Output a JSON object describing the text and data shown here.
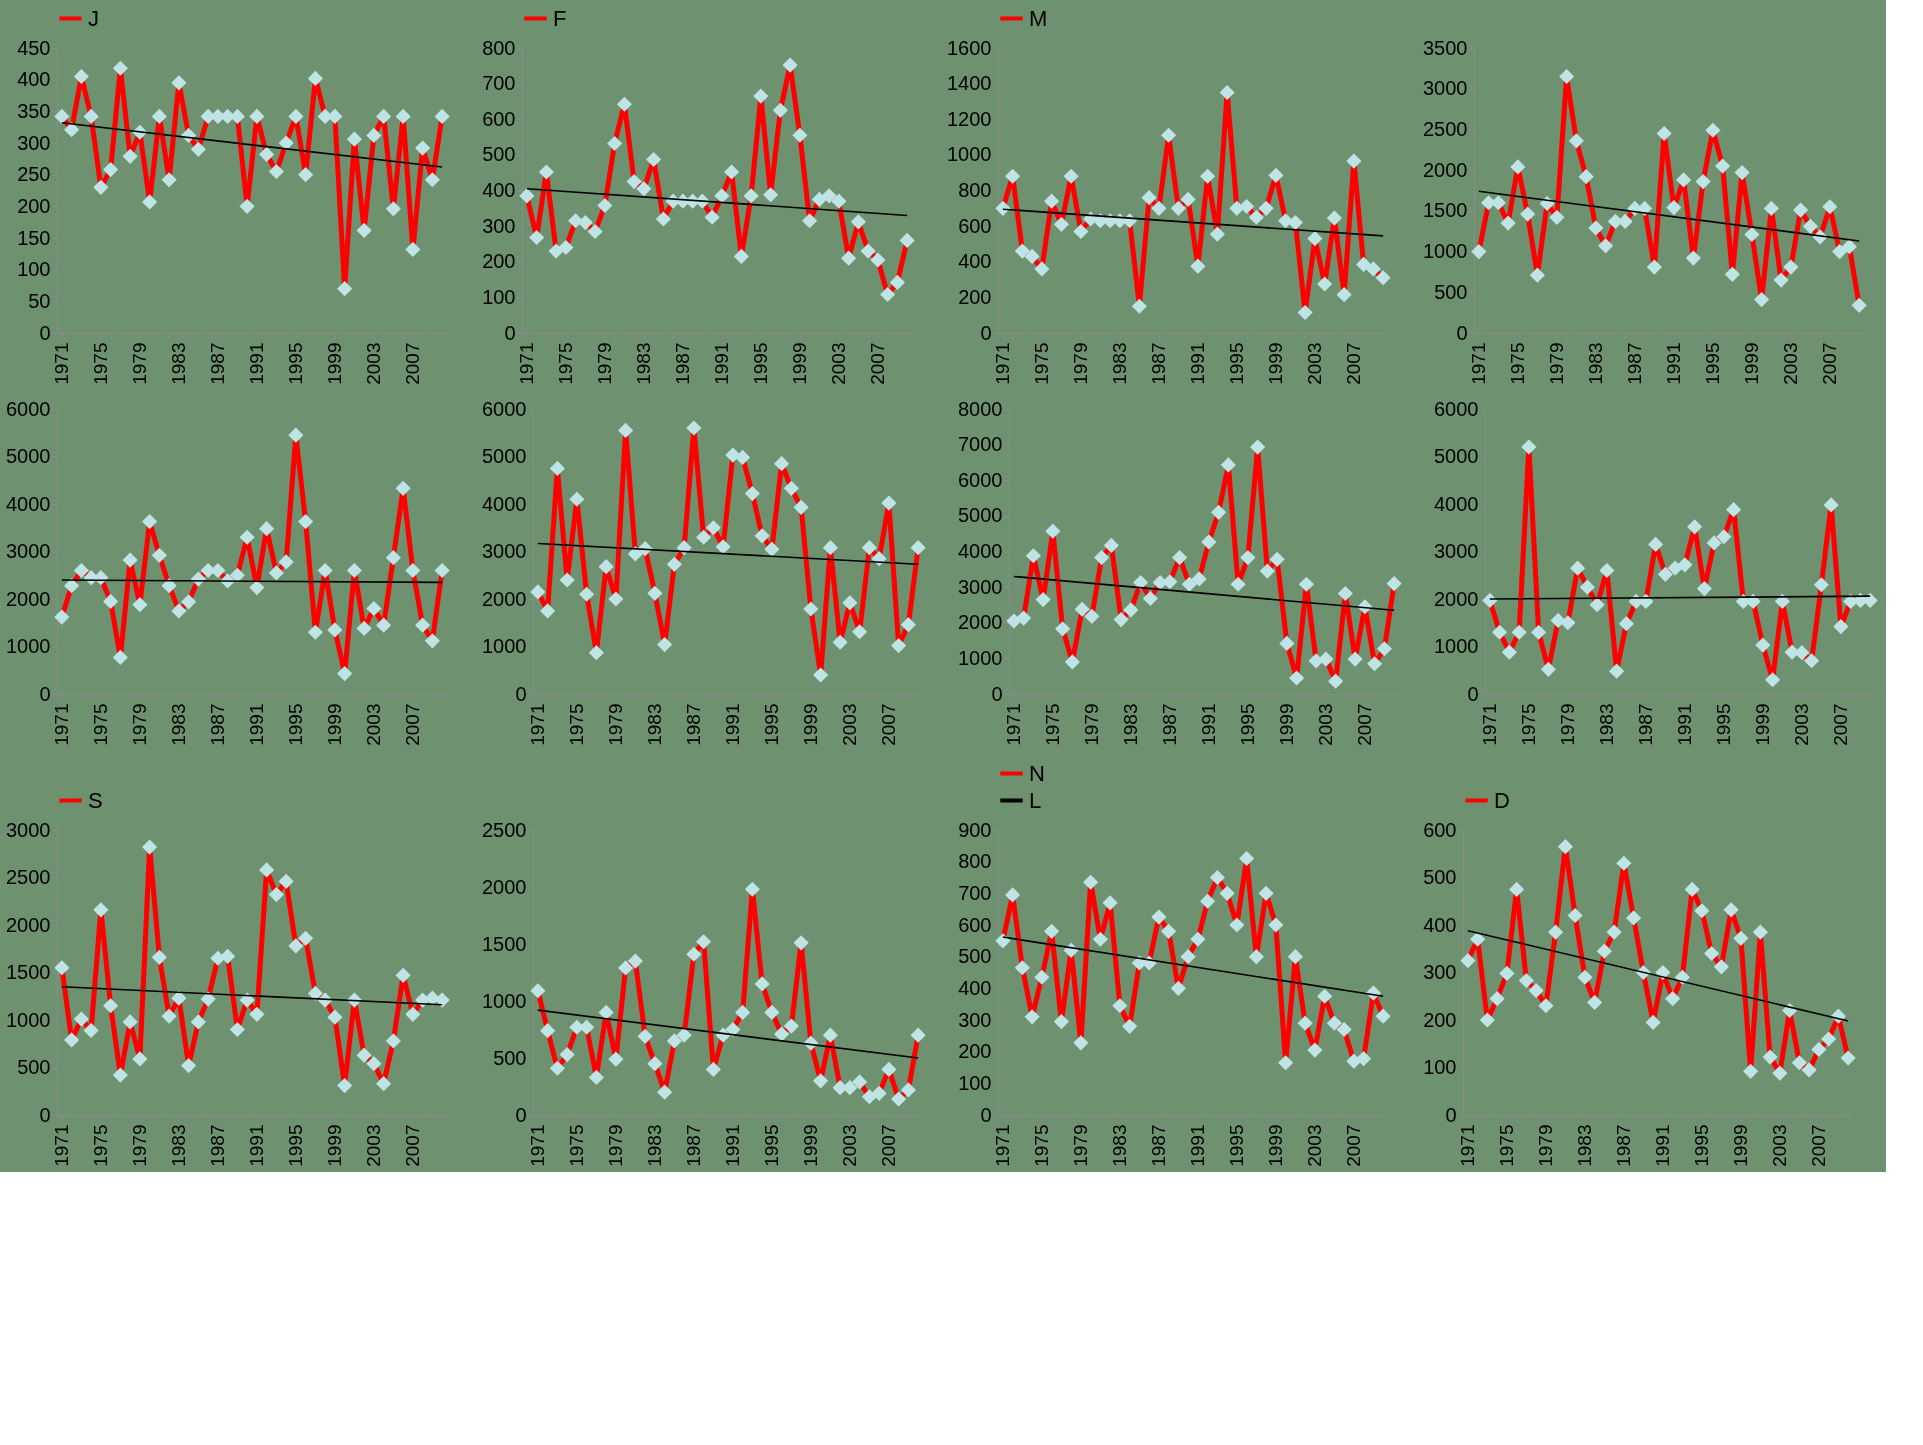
{
  "chart_data": [
    {
      "type": "line",
      "legend": "top",
      "marker": "diamond",
      "ylim": [
        0,
        450
      ],
      "yticks": [
        0,
        50,
        100,
        150,
        200,
        250,
        300,
        350,
        400,
        450
      ],
      "categories": [
        "1971",
        null,
        null,
        null,
        "1975",
        null,
        null,
        null,
        "1979",
        null,
        null,
        null,
        "1983",
        null,
        null,
        null,
        "1987",
        null,
        null,
        null,
        "1991",
        null,
        null,
        null,
        "1995",
        null,
        null,
        null,
        "1999",
        null,
        null,
        null,
        "2003",
        null,
        null,
        null,
        "2007",
        null,
        null,
        null
      ],
      "series": [
        {
          "name": "J",
          "color": "#ff0000",
          "values": [
            342,
            321,
            405,
            342,
            230,
            258,
            418,
            279,
            317,
            207,
            342,
            242,
            395,
            312,
            290,
            342,
            342,
            342,
            342,
            200,
            342,
            282,
            255,
            300,
            342,
            250,
            402,
            342,
            342,
            70,
            306,
            162,
            312,
            342,
            196,
            342,
            132,
            292,
            242,
            342
          ]
        },
        {
          "type": "line",
          "color": "#000000",
          "marker": "none",
          "values": [
            332,
            null,
            null,
            null,
            null,
            null,
            null,
            null,
            null,
            null,
            null,
            null,
            null,
            null,
            null,
            null,
            null,
            null,
            null,
            null,
            null,
            null,
            null,
            null,
            null,
            null,
            null,
            null,
            null,
            null,
            null,
            null,
            null,
            null,
            null,
            null,
            null,
            null,
            null,
            262
          ]
        }
      ]
    },
    {
      "type": "line",
      "legend": "top",
      "marker": "diamond",
      "ylim": [
        0,
        800
      ],
      "yticks": [
        0,
        100,
        200,
        300,
        400,
        500,
        600,
        700,
        800
      ],
      "categories": [
        "1971",
        null,
        null,
        null,
        "1975",
        null,
        null,
        null,
        "1979",
        null,
        null,
        null,
        "1983",
        null,
        null,
        null,
        "1987",
        null,
        null,
        null,
        "1991",
        null,
        null,
        null,
        "1995",
        null,
        null,
        null,
        "1999",
        null,
        null,
        null,
        "2003",
        null,
        null,
        null,
        "2007",
        null,
        null,
        null
      ],
      "series": [
        {
          "name": "F",
          "color": "#ff0000",
          "values": [
            385,
            268,
            452,
            230,
            240,
            315,
            310,
            285,
            358,
            532,
            642,
            425,
            405,
            487,
            320,
            370,
            370,
            370,
            370,
            325,
            385,
            452,
            215,
            385,
            665,
            388,
            625,
            752,
            555,
            315,
            375,
            385,
            370,
            210,
            312,
            230,
            205,
            108,
            142,
            260
          ]
        },
        {
          "type": "line",
          "color": "#000000",
          "marker": "none",
          "values": [
            405,
            null,
            null,
            null,
            null,
            null,
            null,
            null,
            null,
            null,
            null,
            null,
            null,
            null,
            null,
            null,
            null,
            null,
            null,
            null,
            null,
            null,
            null,
            null,
            null,
            null,
            null,
            null,
            null,
            null,
            null,
            null,
            null,
            null,
            null,
            null,
            null,
            null,
            null,
            330
          ]
        }
      ]
    },
    {
      "type": "line",
      "legend": "top",
      "marker": "diamond",
      "ylim": [
        0,
        1600
      ],
      "yticks": [
        0,
        200,
        400,
        600,
        800,
        1000,
        1200,
        1400,
        1600
      ],
      "categories": [
        "1971",
        null,
        null,
        null,
        "1975",
        null,
        null,
        null,
        "1979",
        null,
        null,
        null,
        "1983",
        null,
        null,
        null,
        "1987",
        null,
        null,
        null,
        "1991",
        null,
        null,
        null,
        "1995",
        null,
        null,
        null,
        "1999",
        null,
        null,
        null,
        "2003",
        null,
        null,
        null,
        "2007",
        null,
        null,
        null
      ],
      "series": [
        {
          "name": "M",
          "color": "#ff0000",
          "values": [
            700,
            880,
            460,
            430,
            360,
            740,
            610,
            880,
            570,
            640,
            630,
            630,
            630,
            630,
            150,
            760,
            700,
            1110,
            700,
            750,
            375,
            880,
            555,
            1350,
            700,
            710,
            650,
            700,
            885,
            630,
            620,
            115,
            530,
            275,
            645,
            215,
            965,
            385,
            360,
            310
          ]
        },
        {
          "type": "line",
          "color": "#000000",
          "marker": "none",
          "values": [
            695,
            null,
            null,
            null,
            null,
            null,
            null,
            null,
            null,
            null,
            null,
            null,
            null,
            null,
            null,
            null,
            null,
            null,
            null,
            null,
            null,
            null,
            null,
            null,
            null,
            null,
            null,
            null,
            null,
            null,
            null,
            null,
            null,
            null,
            null,
            null,
            null,
            null,
            null,
            545
          ]
        }
      ]
    },
    {
      "type": "line",
      "marker": "diamond",
      "ylim": [
        0,
        3500
      ],
      "yticks": [
        0,
        500,
        1000,
        1500,
        2000,
        2500,
        3000,
        3500
      ],
      "categories": [
        "1971",
        null,
        null,
        null,
        "1975",
        null,
        null,
        null,
        "1979",
        null,
        null,
        null,
        "1983",
        null,
        null,
        null,
        "1987",
        null,
        null,
        null,
        "1991",
        null,
        null,
        null,
        "1995",
        null,
        null,
        null,
        "1999",
        null,
        null,
        null,
        "2003",
        null,
        null,
        null,
        "2007",
        null,
        null,
        null
      ],
      "series": [
        {
          "color": "#ff0000",
          "values": [
            1000,
            1600,
            1600,
            1350,
            2040,
            1460,
            710,
            1590,
            1420,
            3150,
            2360,
            1920,
            1290,
            1070,
            1370,
            1370,
            1530,
            1530,
            810,
            2450,
            1540,
            1880,
            920,
            1860,
            2490,
            2050,
            720,
            1970,
            1210,
            410,
            1530,
            650,
            810,
            1510,
            1310,
            1180,
            1550,
            1000,
            1060,
            340
          ]
        },
        {
          "type": "line",
          "color": "#000000",
          "marker": "none",
          "values": [
            1740,
            null,
            null,
            null,
            null,
            null,
            null,
            null,
            null,
            null,
            null,
            null,
            null,
            null,
            null,
            null,
            null,
            null,
            null,
            null,
            null,
            null,
            null,
            null,
            null,
            null,
            null,
            null,
            null,
            null,
            null,
            null,
            null,
            null,
            null,
            null,
            null,
            null,
            null,
            1130
          ]
        }
      ]
    },
    {
      "type": "line",
      "marker": "diamond",
      "ylim": [
        0,
        6000
      ],
      "yticks": [
        0,
        1000,
        2000,
        3000,
        4000,
        5000,
        6000
      ],
      "categories": [
        "1971",
        null,
        null,
        null,
        "1975",
        null,
        null,
        null,
        "1979",
        null,
        null,
        null,
        "1983",
        null,
        null,
        null,
        "1987",
        null,
        null,
        null,
        "1991",
        null,
        null,
        null,
        "1995",
        null,
        null,
        null,
        "1999",
        null,
        null,
        null,
        "2003",
        null,
        null,
        null,
        "2007",
        null,
        null,
        null
      ],
      "series": [
        {
          "color": "#ff0000",
          "values": [
            1620,
            2280,
            2600,
            2450,
            2450,
            1950,
            770,
            2820,
            1880,
            3630,
            2920,
            2280,
            1750,
            1940,
            2420,
            2600,
            2600,
            2380,
            2500,
            3300,
            2240,
            3480,
            2550,
            2780,
            5450,
            3630,
            1300,
            2600,
            1350,
            430,
            2600,
            1380,
            1800,
            1450,
            2870,
            4330,
            2600,
            1450,
            1120,
            2600
          ]
        },
        {
          "type": "line",
          "color": "#000000",
          "marker": "none",
          "values": [
            2400,
            null,
            null,
            null,
            null,
            null,
            null,
            null,
            null,
            null,
            null,
            null,
            null,
            null,
            null,
            null,
            null,
            null,
            null,
            null,
            null,
            null,
            null,
            null,
            null,
            null,
            null,
            null,
            null,
            null,
            null,
            null,
            null,
            null,
            null,
            null,
            null,
            null,
            null,
            2350
          ]
        }
      ]
    },
    {
      "type": "line",
      "marker": "diamond",
      "ylim": [
        0,
        6000
      ],
      "yticks": [
        0,
        1000,
        2000,
        3000,
        4000,
        5000,
        6000
      ],
      "categories": [
        "1971",
        null,
        null,
        null,
        "1975",
        null,
        null,
        null,
        "1979",
        null,
        null,
        null,
        "1983",
        null,
        null,
        null,
        "1987",
        null,
        null,
        null,
        "1991",
        null,
        null,
        null,
        "1995",
        null,
        null,
        null,
        "1999",
        null,
        null,
        null,
        "2003",
        null,
        null,
        null,
        "2007",
        null,
        null,
        null
      ],
      "series": [
        {
          "color": "#ff0000",
          "values": [
            2150,
            1750,
            4750,
            2400,
            4100,
            2100,
            870,
            2680,
            2000,
            5550,
            2950,
            3060,
            2120,
            1040,
            2730,
            3080,
            5600,
            3300,
            3500,
            3100,
            5030,
            4980,
            4220,
            3330,
            3050,
            4850,
            4330,
            3930,
            1790,
            400,
            3080,
            1090,
            1920,
            1310,
            3080,
            2850,
            4020,
            1020,
            1460,
            3080
          ]
        },
        {
          "type": "line",
          "color": "#000000",
          "marker": "none",
          "values": [
            3170,
            null,
            null,
            null,
            null,
            null,
            null,
            null,
            null,
            null,
            null,
            null,
            null,
            null,
            null,
            null,
            null,
            null,
            null,
            null,
            null,
            null,
            null,
            null,
            null,
            null,
            null,
            null,
            null,
            null,
            null,
            null,
            null,
            null,
            null,
            null,
            null,
            null,
            null,
            2730
          ]
        }
      ]
    },
    {
      "type": "line",
      "marker": "diamond",
      "ylim": [
        0,
        8000
      ],
      "yticks": [
        0,
        1000,
        2000,
        3000,
        4000,
        5000,
        6000,
        7000,
        8000
      ],
      "categories": [
        "1971",
        null,
        null,
        null,
        "1975",
        null,
        null,
        null,
        "1979",
        null,
        null,
        null,
        "1983",
        null,
        null,
        null,
        "1987",
        null,
        null,
        null,
        "1991",
        null,
        null,
        null,
        "1995",
        null,
        null,
        null,
        "1999",
        null,
        null,
        null,
        "2003",
        null,
        null,
        null,
        "2007",
        null,
        null,
        null
      ],
      "series": [
        {
          "color": "#ff0000",
          "values": [
            2050,
            2130,
            3880,
            2650,
            4570,
            1830,
            900,
            2380,
            2180,
            3830,
            4170,
            2090,
            2360,
            3130,
            2680,
            3130,
            3150,
            3830,
            3080,
            3230,
            4270,
            5100,
            6430,
            3080,
            3830,
            6930,
            3450,
            3780,
            1420,
            450,
            3080,
            930,
            980,
            360,
            2820,
            980,
            2450,
            850,
            1270,
            3100
          ]
        },
        {
          "type": "line",
          "color": "#000000",
          "marker": "none",
          "values": [
            3300,
            null,
            null,
            null,
            null,
            null,
            null,
            null,
            null,
            null,
            null,
            null,
            null,
            null,
            null,
            null,
            null,
            null,
            null,
            null,
            null,
            null,
            null,
            null,
            null,
            null,
            null,
            null,
            null,
            null,
            null,
            null,
            null,
            null,
            null,
            null,
            null,
            null,
            null,
            2350
          ]
        }
      ]
    },
    {
      "type": "line",
      "marker": "diamond",
      "ylim": [
        0,
        6000
      ],
      "yticks": [
        0,
        1000,
        2000,
        3000,
        4000,
        5000,
        6000
      ],
      "categories": [
        "1971",
        null,
        null,
        null,
        "1975",
        null,
        null,
        null,
        "1979",
        null,
        null,
        null,
        "1983",
        null,
        null,
        null,
        "1987",
        null,
        null,
        null,
        "1991",
        null,
        null,
        null,
        "1995",
        null,
        null,
        null,
        "1999",
        null,
        null,
        null,
        "2003",
        null,
        null,
        null,
        "2007",
        null,
        null,
        null
      ],
      "series": [
        {
          "color": "#ff0000",
          "values": [
            1970,
            1300,
            880,
            1300,
            5200,
            1300,
            520,
            1550,
            1500,
            2650,
            2250,
            1880,
            2600,
            480,
            1480,
            1950,
            1950,
            3150,
            2520,
            2650,
            2720,
            3520,
            2220,
            3180,
            3310,
            3880,
            1950,
            1950,
            1030,
            300,
            1950,
            880,
            870,
            700,
            2300,
            3980,
            1420,
            1950,
            1970,
            1970
          ]
        },
        {
          "type": "line",
          "color": "#000000",
          "marker": "none",
          "values": [
            2000,
            null,
            null,
            null,
            null,
            null,
            null,
            null,
            null,
            null,
            null,
            null,
            null,
            null,
            null,
            null,
            null,
            null,
            null,
            null,
            null,
            null,
            null,
            null,
            null,
            null,
            null,
            null,
            null,
            null,
            null,
            null,
            null,
            null,
            null,
            null,
            null,
            null,
            null,
            2060
          ]
        }
      ]
    },
    {
      "type": "line",
      "legend": "top",
      "marker": "diamond",
      "ylim": [
        0,
        3000
      ],
      "yticks": [
        0,
        500,
        1000,
        1500,
        2000,
        2500,
        3000
      ],
      "categories": [
        "1971",
        null,
        null,
        null,
        "1975",
        null,
        null,
        null,
        "1979",
        null,
        null,
        null,
        "1983",
        null,
        null,
        null,
        "1987",
        null,
        null,
        null,
        "1991",
        null,
        null,
        null,
        "1995",
        null,
        null,
        null,
        "1999",
        null,
        null,
        null,
        "2003",
        null,
        null,
        null,
        "2007",
        null,
        null,
        null
      ],
      "series": [
        {
          "name": "S",
          "color": "#ff0000",
          "values": [
            1550,
            790,
            1010,
            890,
            2160,
            1150,
            420,
            980,
            590,
            2820,
            1660,
            1040,
            1230,
            520,
            980,
            1220,
            1650,
            1670,
            900,
            1210,
            1060,
            2580,
            2320,
            2460,
            1780,
            1860,
            1280,
            1210,
            1030,
            310,
            1210,
            630,
            540,
            330,
            780,
            1470,
            1060,
            1210,
            1230,
            1210
          ]
        },
        {
          "type": "line",
          "color": "#000000",
          "marker": "none",
          "values": [
            1350,
            null,
            null,
            null,
            null,
            null,
            null,
            null,
            null,
            null,
            null,
            null,
            null,
            null,
            null,
            null,
            null,
            null,
            null,
            null,
            null,
            null,
            null,
            null,
            null,
            null,
            null,
            null,
            null,
            null,
            null,
            null,
            null,
            null,
            null,
            null,
            null,
            null,
            null,
            1160
          ]
        }
      ]
    },
    {
      "type": "line",
      "marker": "diamond",
      "ylim": [
        0,
        2500
      ],
      "yticks": [
        0,
        500,
        1000,
        1500,
        2000,
        2500
      ],
      "categories": [
        "1971",
        null,
        null,
        null,
        "1975",
        null,
        null,
        null,
        "1979",
        null,
        null,
        null,
        "1983",
        null,
        null,
        null,
        "1987",
        null,
        null,
        null,
        "1991",
        null,
        null,
        null,
        "1995",
        null,
        null,
        null,
        "1999",
        null,
        null,
        null,
        "2003",
        null,
        null,
        null,
        "2007",
        null,
        null,
        null
      ],
      "series": [
        {
          "color": "#ff0000",
          "values": [
            1090,
            740,
            410,
            530,
            770,
            770,
            330,
            900,
            490,
            1290,
            1350,
            690,
            450,
            200,
            650,
            700,
            1410,
            1520,
            400,
            700,
            750,
            900,
            1980,
            1150,
            900,
            710,
            780,
            1510,
            630,
            300,
            700,
            240,
            240,
            290,
            160,
            190,
            400,
            140,
            220,
            700
          ]
        },
        {
          "type": "line",
          "color": "#000000",
          "marker": "none",
          "values": [
            920,
            null,
            null,
            null,
            null,
            null,
            null,
            null,
            null,
            null,
            null,
            null,
            null,
            null,
            null,
            null,
            null,
            null,
            null,
            null,
            null,
            null,
            null,
            null,
            null,
            null,
            null,
            null,
            null,
            null,
            null,
            null,
            null,
            null,
            null,
            null,
            null,
            null,
            null,
            500
          ]
        }
      ]
    },
    {
      "type": "line",
      "legend": "top",
      "marker": "diamond",
      "ylim": [
        0,
        900
      ],
      "yticks": [
        0,
        100,
        200,
        300,
        400,
        500,
        600,
        700,
        800,
        900
      ],
      "categories": [
        "1971",
        null,
        null,
        null,
        "1975",
        null,
        null,
        null,
        "1979",
        null,
        null,
        null,
        "1983",
        null,
        null,
        null,
        "1987",
        null,
        null,
        null,
        "1991",
        null,
        null,
        null,
        "1995",
        null,
        null,
        null,
        "1999",
        null,
        null,
        null,
        "2003",
        null,
        null,
        null,
        "2007",
        null,
        null,
        null
      ],
      "series": [
        {
          "name": "N",
          "color": "#ff0000",
          "values": [
            550,
            695,
            465,
            310,
            435,
            580,
            295,
            520,
            228,
            735,
            555,
            670,
            345,
            280,
            480,
            480,
            625,
            580,
            400,
            500,
            555,
            675,
            750,
            700,
            600,
            810,
            500,
            700,
            600,
            165,
            500,
            290,
            205,
            375,
            290,
            270,
            170,
            178,
            385,
            312
          ]
        },
        {
          "name": "L",
          "type": "line",
          "color": "#000000",
          "marker": "none",
          "values": [
            562,
            null,
            null,
            null,
            null,
            null,
            null,
            null,
            null,
            null,
            null,
            null,
            null,
            null,
            null,
            null,
            null,
            null,
            null,
            null,
            null,
            null,
            null,
            null,
            null,
            null,
            null,
            null,
            null,
            null,
            null,
            null,
            null,
            null,
            null,
            null,
            null,
            null,
            null,
            375
          ]
        }
      ]
    },
    {
      "type": "line",
      "legend": "top",
      "marker": "diamond",
      "ylim": [
        0,
        600
      ],
      "yticks": [
        0,
        100,
        200,
        300,
        400,
        500,
        600
      ],
      "categories": [
        "1971",
        null,
        null,
        null,
        "1975",
        null,
        null,
        null,
        "1979",
        null,
        null,
        null,
        "1983",
        null,
        null,
        null,
        "1987",
        null,
        null,
        null,
        "1991",
        null,
        null,
        null,
        "1995",
        null,
        null,
        null,
        "1999",
        null,
        null,
        null,
        "2003",
        null,
        null,
        null,
        "2007",
        null,
        null,
        null
      ],
      "series": [
        {
          "name": "D",
          "color": "#ff0000",
          "values": [
            325,
            370,
            200,
            245,
            298,
            475,
            283,
            262,
            230,
            385,
            565,
            420,
            290,
            237,
            345,
            385,
            530,
            415,
            300,
            195,
            300,
            245,
            290,
            475,
            430,
            340,
            312,
            432,
            372,
            92,
            385,
            122,
            88,
            220,
            110,
            95,
            138,
            160,
            208,
            120
          ]
        },
        {
          "type": "line",
          "color": "#000000",
          "marker": "none",
          "values": [
            388,
            null,
            null,
            null,
            null,
            null,
            null,
            null,
            null,
            null,
            null,
            null,
            null,
            null,
            null,
            null,
            null,
            null,
            null,
            null,
            null,
            null,
            null,
            null,
            null,
            null,
            null,
            null,
            null,
            null,
            null,
            null,
            null,
            null,
            null,
            null,
            null,
            null,
            null,
            198
          ]
        }
      ]
    }
  ]
}
